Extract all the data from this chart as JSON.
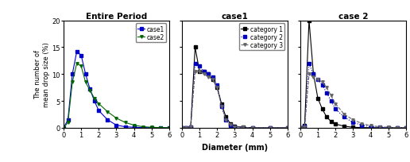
{
  "title1": "Entire Period",
  "title2": "case1",
  "title3": "case 2",
  "xlabel": "Diameter (mm)",
  "ylabel": "The number of\nmean drop size (%)",
  "ylim": [
    0,
    20
  ],
  "xlim": [
    0,
    6
  ],
  "xticks": [
    0,
    1,
    2,
    3,
    4,
    5,
    6
  ],
  "yticks": [
    0,
    5,
    10,
    15,
    20
  ],
  "panel1": {
    "legend": [
      "case1",
      "case2"
    ],
    "colors": [
      "#0000cc",
      "#006600"
    ],
    "linestyles": [
      "-",
      "-"
    ],
    "markers": [
      "s",
      "v"
    ],
    "case1_x": [
      0.0,
      0.25,
      0.5,
      0.75,
      1.0,
      1.25,
      1.5,
      1.75,
      2.0,
      2.5,
      3.0,
      3.5,
      4.0,
      4.5,
      5.0,
      5.5,
      6.0
    ],
    "case1_y": [
      0.0,
      1.5,
      10.0,
      14.2,
      13.5,
      10.0,
      7.2,
      5.0,
      3.2,
      1.5,
      0.5,
      0.2,
      0.1,
      0.05,
      0.02,
      0.01,
      0.0
    ],
    "case2_x": [
      0.0,
      0.25,
      0.5,
      0.75,
      1.0,
      1.25,
      1.5,
      1.75,
      2.0,
      2.5,
      3.0,
      3.5,
      4.0,
      4.5,
      5.0,
      5.5,
      6.0
    ],
    "case2_y": [
      0.0,
      1.0,
      8.5,
      12.0,
      11.5,
      8.5,
      7.0,
      5.5,
      4.5,
      3.0,
      1.8,
      1.0,
      0.5,
      0.2,
      0.1,
      0.05,
      0.0
    ]
  },
  "panel2": {
    "legend": [
      "category 1",
      "category 2",
      "category 3"
    ],
    "colors": [
      "#000000",
      "#0000bb",
      "#666666"
    ],
    "linestyles": [
      "-",
      ":",
      "--"
    ],
    "markers": [
      "s",
      "s",
      "v"
    ],
    "cat1_x": [
      0.0,
      0.25,
      0.5,
      0.75,
      1.0,
      1.25,
      1.5,
      1.75,
      2.0,
      2.25,
      2.5,
      2.75,
      3.0,
      3.5,
      4.0,
      5.0,
      6.0
    ],
    "cat1_y": [
      0.0,
      0.0,
      0.2,
      15.0,
      10.5,
      10.5,
      10.0,
      9.0,
      7.5,
      4.5,
      2.0,
      0.8,
      0.3,
      0.1,
      0.0,
      0.0,
      0.0
    ],
    "cat2_x": [
      0.0,
      0.25,
      0.5,
      0.75,
      1.0,
      1.25,
      1.5,
      1.75,
      2.0,
      2.25,
      2.5,
      2.75,
      3.0,
      3.5,
      4.0,
      5.0,
      6.0
    ],
    "cat2_y": [
      0.0,
      0.0,
      0.2,
      12.0,
      11.5,
      10.5,
      10.0,
      9.5,
      8.0,
      4.0,
      1.5,
      0.5,
      0.2,
      0.05,
      0.0,
      0.0,
      0.0
    ],
    "cat3_x": [
      0.0,
      0.25,
      0.5,
      0.75,
      1.0,
      1.25,
      1.5,
      1.75,
      2.0,
      2.25,
      2.5,
      2.75,
      3.0,
      3.5,
      4.0,
      5.0,
      6.0
    ],
    "cat3_y": [
      0.0,
      0.0,
      0.2,
      10.5,
      10.5,
      10.0,
      9.5,
      9.0,
      7.5,
      4.0,
      1.5,
      0.6,
      0.2,
      0.08,
      0.0,
      0.0,
      0.0
    ]
  },
  "panel3": {
    "legend": [
      "category 1",
      "category 2",
      "category 3"
    ],
    "colors": [
      "#000000",
      "#0000bb",
      "#666666"
    ],
    "linestyles": [
      "-",
      ":",
      "--"
    ],
    "markers": [
      "s",
      "s",
      "v"
    ],
    "cat1_x": [
      0.0,
      0.25,
      0.5,
      0.75,
      1.0,
      1.25,
      1.5,
      1.75,
      2.0,
      2.5,
      3.0,
      3.5,
      4.0,
      4.5,
      5.0,
      5.5,
      6.0
    ],
    "cat1_y": [
      0.0,
      0.5,
      20.0,
      10.0,
      5.5,
      3.5,
      2.0,
      1.2,
      0.7,
      0.3,
      0.1,
      0.05,
      0.02,
      0.01,
      0.0,
      0.0,
      0.0
    ],
    "cat2_x": [
      0.0,
      0.25,
      0.5,
      0.75,
      1.0,
      1.25,
      1.5,
      1.75,
      2.0,
      2.5,
      3.0,
      3.5,
      4.0,
      4.5,
      5.0,
      5.5,
      6.0
    ],
    "cat2_y": [
      0.0,
      0.3,
      12.0,
      10.0,
      9.0,
      8.0,
      6.5,
      5.0,
      3.5,
      2.0,
      1.0,
      0.5,
      0.2,
      0.1,
      0.05,
      0.01,
      0.0
    ],
    "cat3_x": [
      0.0,
      0.25,
      0.5,
      0.75,
      1.0,
      1.25,
      1.5,
      1.75,
      2.0,
      2.5,
      3.0,
      3.5,
      4.0,
      4.5,
      5.0,
      5.5,
      6.0
    ],
    "cat3_y": [
      0.0,
      0.2,
      10.0,
      9.5,
      9.0,
      8.5,
      7.5,
      6.0,
      4.5,
      2.5,
      1.5,
      0.8,
      0.4,
      0.2,
      0.1,
      0.05,
      0.0
    ]
  }
}
